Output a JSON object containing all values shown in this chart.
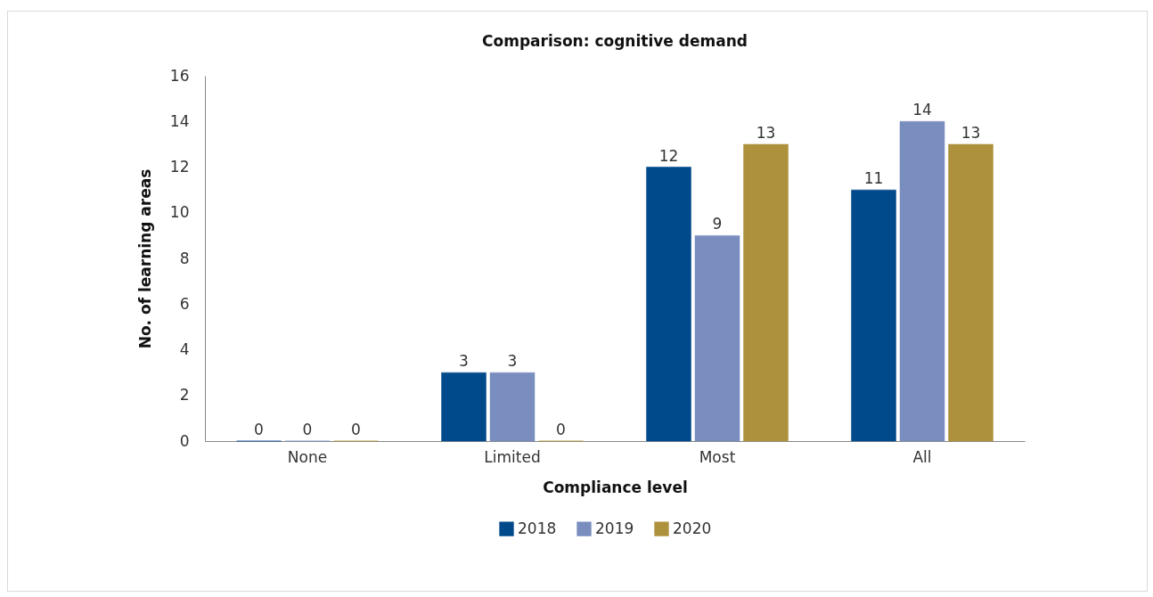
{
  "chart_data": {
    "type": "bar",
    "title": "Comparison: cognitive demand",
    "xlabel": "Compliance level",
    "ylabel": "No. of learning areas",
    "categories": [
      "None",
      "Limited",
      "Most",
      "All"
    ],
    "series": [
      {
        "name": "2018",
        "color": "#00498a",
        "values": [
          0,
          3,
          12,
          11
        ]
      },
      {
        "name": "2019",
        "color": "#7a8dbf",
        "values": [
          0,
          3,
          9,
          14
        ]
      },
      {
        "name": "2020",
        "color": "#ae913c",
        "values": [
          0,
          0,
          13,
          13
        ]
      }
    ],
    "ylim": [
      0,
      16
    ],
    "yticks": [
      0,
      2,
      4,
      6,
      8,
      10,
      12,
      14,
      16
    ],
    "grid": false,
    "legend": "bottom",
    "data_labels": true
  }
}
